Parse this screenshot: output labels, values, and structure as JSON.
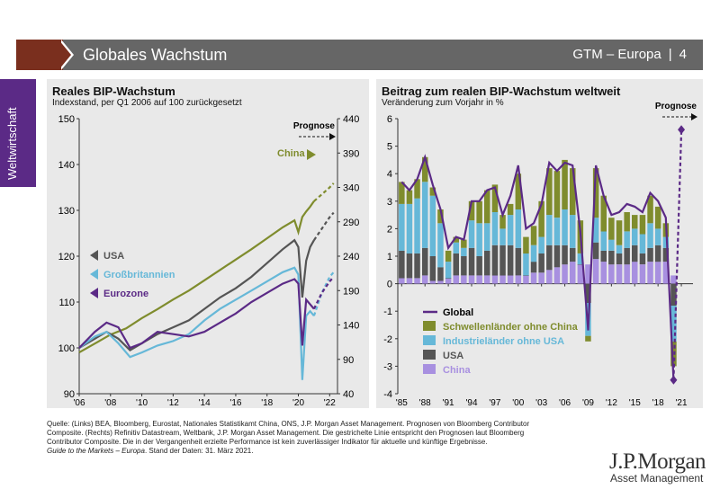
{
  "header": {
    "title": "Globales Wachstum",
    "right_label": "GTM – Europa",
    "separator": "|",
    "page_number": "4"
  },
  "sidebar": {
    "label": "Weltwirtschaft"
  },
  "colors": {
    "accent_brown": "#7a2f1e",
    "purple": "#5b2a86",
    "olive": "#7f8c2d",
    "light_blue": "#66b8d8",
    "gray": "#555555",
    "light_purple": "#a890e0"
  },
  "left_panel": {
    "title": "Reales BIP-Wachstum",
    "subtitle": "Indexstand, per Q1 2006 auf 100 zurückgesetzt"
  },
  "right_panel": {
    "title": "Beitrag zum realen BIP-Wachstum weltweit",
    "subtitle": "Veränderung zum Vorjahr in %"
  },
  "footer": {
    "source": "Quelle: (Links) BEA, Bloomberg, Eurostat, Nationales Statistikamt China, ONS, J.P. Morgan Asset Management. Prognosen von Bloomberg Contributor Composite. (Rechts) Refinitiv Datastream, Weltbank, J.P. Morgan Asset Management. Die gestrichelte Linie entspricht den Prognosen laut Bloomberg Contributor Composite. Die in der Vergangenheit erzielte Performance ist kein zuverlässiger Indikator für aktuelle und künftige Ergebnisse.",
    "guide_title": "Guide to the Markets – Europa",
    "guide_rest": ". Stand der Daten: 31. März 2021."
  },
  "logo": {
    "main": "J.P.Morgan",
    "sub": "Asset Management"
  },
  "chart_data": [
    {
      "type": "line",
      "title": "Reales BIP-Wachstum",
      "subtitle": "Indexstand, per Q1 2006 auf 100 zurückgesetzt",
      "x_ticks": [
        "'06",
        "'08",
        "'10",
        "'12",
        "'14",
        "'16",
        "'18",
        "'20",
        "'22"
      ],
      "x_range": [
        2006,
        2022.5
      ],
      "y_left": {
        "ticks": [
          90,
          100,
          110,
          120,
          130,
          140,
          150
        ],
        "range": [
          90,
          150
        ]
      },
      "y_right": {
        "ticks": [
          40,
          90,
          140,
          190,
          240,
          290,
          340,
          390,
          440
        ],
        "range": [
          40,
          440
        ]
      },
      "forecast_label": "Prognose",
      "forecast_start": 2021,
      "series": [
        {
          "name": "China",
          "axis": "right",
          "color": "#7f8c2d",
          "x": [
            2006,
            2007,
            2008,
            2009,
            2010,
            2011,
            2012,
            2013,
            2014,
            2015,
            2016,
            2017,
            2018,
            2019,
            2019.75,
            2020,
            2020.25,
            2020.5,
            2020.75,
            2021,
            2021.5,
            2022,
            2022.25
          ],
          "y": [
            100,
            113,
            126,
            135,
            150,
            163,
            177,
            190,
            205,
            220,
            235,
            250,
            266,
            282,
            292,
            275,
            297,
            305,
            312,
            320,
            330,
            340,
            346
          ]
        },
        {
          "name": "USA",
          "axis": "left",
          "color": "#555555",
          "x": [
            2006,
            2007,
            2007.75,
            2008.5,
            2009.25,
            2010,
            2011,
            2012,
            2013,
            2014,
            2015,
            2016,
            2017,
            2018,
            2019,
            2019.75,
            2020,
            2020.25,
            2020.5,
            2020.75,
            2021,
            2021.5,
            2022,
            2022.25
          ],
          "y": [
            100,
            102,
            103.5,
            102,
            99.5,
            101,
            103,
            104.5,
            106,
            108.5,
            111,
            113,
            115.5,
            118.5,
            121.5,
            123.5,
            122,
            111,
            119,
            122,
            123.5,
            126,
            128.5,
            129.5
          ]
        },
        {
          "name": "Großbritannien",
          "axis": "left",
          "color": "#66b8d8",
          "x": [
            2006,
            2007,
            2007.75,
            2008.5,
            2009.25,
            2010,
            2011,
            2012,
            2013,
            2014,
            2015,
            2016,
            2017,
            2018,
            2019,
            2019.75,
            2020,
            2020.25,
            2020.5,
            2020.75,
            2021,
            2021.5,
            2022,
            2022.25
          ],
          "y": [
            100,
            102.5,
            103.5,
            101,
            98,
            99,
            100.5,
            101.5,
            103,
            106,
            108.5,
            110.5,
            112.5,
            114.5,
            116.5,
            117.5,
            116,
            93,
            107,
            108,
            107,
            112,
            115.5,
            116.5
          ]
        },
        {
          "name": "Eurozone",
          "axis": "left",
          "color": "#5b2a86",
          "x": [
            2006,
            2007,
            2007.75,
            2008.5,
            2009.25,
            2010,
            2011,
            2012,
            2013,
            2014,
            2015,
            2016,
            2017,
            2018,
            2019,
            2019.75,
            2020,
            2020.25,
            2020.5,
            2020.75,
            2021,
            2021.5,
            2022,
            2022.25
          ],
          "y": [
            100,
            103.5,
            105.5,
            104.5,
            100,
            101,
            103.5,
            103,
            102.5,
            103.5,
            105.5,
            107.5,
            110,
            112,
            114,
            115,
            114,
            100.5,
            110.5,
            109.5,
            108.5,
            112,
            114.5,
            115.5
          ]
        }
      ],
      "labels": [
        "USA",
        "Großbritannien",
        "Eurozone",
        "China"
      ]
    },
    {
      "type": "bar",
      "title": "Beitrag zum realen BIP-Wachstum weltweit",
      "subtitle": "Veränderung zum Vorjahr in %",
      "stacked": true,
      "x_ticks": [
        "'85",
        "'88",
        "'91",
        "'94",
        "'97",
        "'00",
        "'03",
        "'06",
        "'09",
        "'12",
        "'15",
        "'18",
        "'21"
      ],
      "y_range": [
        -4,
        6
      ],
      "y_ticks": [
        -4,
        -3,
        -2,
        -1,
        0,
        1,
        2,
        3,
        4,
        5,
        6
      ],
      "forecast_label": "Prognose",
      "years": [
        1985,
        1986,
        1987,
        1988,
        1989,
        1990,
        1991,
        1992,
        1993,
        1994,
        1995,
        1996,
        1997,
        1998,
        1999,
        2000,
        2001,
        2002,
        2003,
        2004,
        2005,
        2006,
        2007,
        2008,
        2009,
        2010,
        2011,
        2012,
        2013,
        2014,
        2015,
        2016,
        2017,
        2018,
        2019,
        2020
      ],
      "series": [
        {
          "name": "China",
          "color": "#a890e0",
          "values": [
            0.2,
            0.2,
            0.2,
            0.3,
            0.1,
            0.1,
            0.2,
            0.3,
            0.3,
            0.3,
            0.3,
            0.3,
            0.3,
            0.3,
            0.3,
            0.3,
            0.3,
            0.4,
            0.4,
            0.5,
            0.6,
            0.7,
            0.8,
            0.7,
            0.7,
            0.9,
            0.8,
            0.7,
            0.7,
            0.7,
            0.8,
            0.7,
            0.8,
            0.8,
            0.8,
            0.3
          ]
        },
        {
          "name": "USA",
          "color": "#555555",
          "values": [
            1.0,
            0.9,
            0.9,
            1.0,
            0.9,
            0.5,
            0.0,
            0.8,
            0.7,
            1.0,
            0.7,
            0.9,
            1.1,
            1.1,
            1.1,
            1.0,
            0.0,
            0.4,
            0.7,
            0.9,
            0.8,
            0.7,
            0.5,
            0.0,
            -0.7,
            0.6,
            0.4,
            0.5,
            0.4,
            0.6,
            0.6,
            0.4,
            0.5,
            0.6,
            0.5,
            -0.8
          ]
        },
        {
          "name": "Industrieländer ohne USA",
          "color": "#66b8d8",
          "values": [
            1.7,
            1.8,
            2.0,
            2.4,
            2.2,
            1.6,
            0.6,
            0.4,
            0.3,
            1.0,
            1.2,
            1.0,
            1.2,
            0.6,
            1.1,
            1.4,
            0.8,
            0.6,
            0.6,
            1.1,
            1.0,
            1.3,
            1.2,
            0.4,
            -1.2,
            0.9,
            0.7,
            0.4,
            0.3,
            0.6,
            0.6,
            0.7,
            0.9,
            0.6,
            0.4,
            -1.3
          ]
        },
        {
          "name": "Schwellenländer ohne China",
          "color": "#7f8c2d",
          "values": [
            0.8,
            0.5,
            0.7,
            0.9,
            0.3,
            0.5,
            0.4,
            0.2,
            0.3,
            0.7,
            0.8,
            1.2,
            1.0,
            0.5,
            0.4,
            1.3,
            0.6,
            0.7,
            1.3,
            1.7,
            1.7,
            1.8,
            1.7,
            1.2,
            -0.2,
            1.8,
            1.3,
            0.8,
            0.9,
            0.7,
            0.5,
            0.7,
            1.0,
            0.8,
            0.5,
            -0.9
          ]
        }
      ],
      "global": {
        "name": "Global",
        "color": "#5b2a86",
        "values": [
          3.7,
          3.4,
          3.8,
          4.6,
          3.6,
          2.7,
          1.3,
          1.7,
          1.6,
          3.0,
          3.0,
          3.4,
          3.5,
          2.5,
          3.2,
          4.3,
          2.0,
          2.2,
          2.9,
          4.4,
          4.1,
          4.4,
          4.3,
          1.9,
          -1.7,
          4.3,
          3.2,
          2.5,
          2.6,
          2.9,
          2.8,
          2.6,
          3.3,
          3.0,
          2.4,
          -3.5
        ],
        "forecast_x": [
          2020,
          2021
        ],
        "forecast_y": [
          -3.5,
          5.6
        ]
      }
    }
  ]
}
